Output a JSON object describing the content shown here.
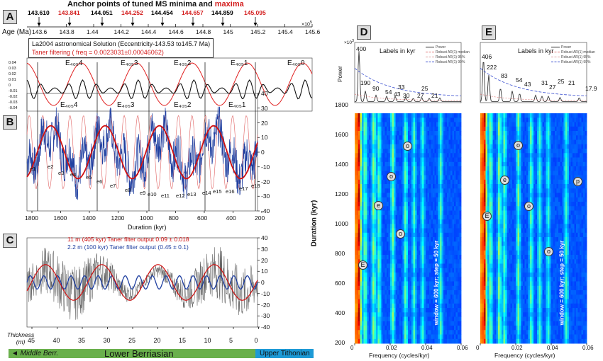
{
  "header": {
    "title_black": "Anchor points of tuned MS minima and ",
    "title_red": "maxima",
    "anchors": [
      "143.610",
      "143.841",
      "144.051",
      "144.252",
      "144.454",
      "144.657",
      "144.859",
      "145.095"
    ],
    "anchor_colors": [
      "#000000",
      "#d42020",
      "#000000",
      "#d42020",
      "#000000",
      "#d42020",
      "#000000",
      "#d42020"
    ],
    "age_label": "Age (Ma)",
    "age_ticks": [
      "143.6",
      "143.8",
      "1.44",
      "144.2",
      "144.4",
      "144.6",
      "144.8",
      "145",
      "145.2",
      "145.4",
      "145.6"
    ],
    "exp": "×10",
    "exp_power": "5"
  },
  "panelA": {
    "letter": "A",
    "legend_line1": "La2004 astronomical Solution (Eccentricity-143.53 to145.7 Ma)",
    "legend_line2": "Taner filtering ( freq = 0.0023031±0.00046062)",
    "e_labels": [
      "E₄₀₅4",
      "E₄₀₅3",
      "E₄₀₅2",
      "E₄₀₅1",
      "E₄₀₅0"
    ],
    "yticks": [
      "0.04",
      "0.03",
      "0.02",
      "0.01",
      "0",
      "-0.01",
      "-0.02",
      "-0.03",
      "-0.04"
    ]
  },
  "panelB": {
    "letter": "B",
    "e_labels": [
      "E₄₀₅4",
      "E₄₀₅3",
      "E₄₀₅2",
      "E₄₀₅1"
    ],
    "small_e": [
      "e1",
      "e2",
      "e3",
      "e4",
      "e5",
      "e6",
      "e7",
      "e8",
      "e9",
      "e10",
      "e11",
      "e12",
      "e13",
      "e14",
      "e15",
      "e16",
      "e17",
      "e18"
    ],
    "xticks": [
      "1800",
      "1600",
      "1400",
      "1200",
      "1000",
      "800",
      "600",
      "400",
      "200"
    ],
    "yticks": [
      "40",
      "30",
      "20",
      "10",
      "0",
      "-10",
      "-20",
      "-30",
      "-40"
    ],
    "xlabel": "Duration (kyr)"
  },
  "panelC": {
    "letter": "C",
    "legend_red": "11 m (405 kyr) Taner filter output 0.09 ± 0.018",
    "legend_blue": "2.2 m (100 kyr) Taner filter output (0.45 ± 0.1)",
    "yticks": [
      "40",
      "30",
      "20",
      "10",
      "0",
      "-10",
      "-20",
      "-30",
      "-40"
    ],
    "xticks": [
      "45",
      "40",
      "35",
      "30",
      "25",
      "20",
      "15",
      "10",
      "5",
      "0"
    ],
    "thickness": "Thickness",
    "thickness_unit": "(m)"
  },
  "formation": {
    "middle": "◄ Middle Berr.",
    "lower": "Lower Berriasian",
    "upper": "Upper Tithonian",
    "color_green": "#6ab04c",
    "color_blue": "#1e9ad6"
  },
  "panelD": {
    "letter": "D",
    "labels_title": "Labels in kyr",
    "peak_labels": [
      "400",
      "190",
      "90",
      "54",
      "43",
      "33",
      "30",
      "27",
      "25",
      "21"
    ],
    "legend": [
      "Power",
      "Robust AR(1) median",
      "Robust AR(1) 95%",
      "Robust AR(1) 99%"
    ],
    "power_label": "Power",
    "power_exp": "×10",
    "power_exp_n": "3",
    "ylabel": "Duration (kyr)",
    "yticks": [
      "1800",
      "1600",
      "1400",
      "1200",
      "1000",
      "800",
      "600",
      "400",
      "200"
    ],
    "xticks": [
      "0",
      "0.02",
      "0.04",
      "0.06"
    ],
    "xlabel": "Frequency (cycles/kyr)",
    "window_note": "window = 600 kyr; step = 50 kyr",
    "marks": [
      "o",
      "o",
      "e",
      "o",
      "E"
    ]
  },
  "panelE": {
    "letter": "E",
    "labels_title": "Labels in kyr",
    "peak_labels": [
      "406",
      "222",
      "83",
      "54",
      "43",
      "31",
      "27",
      "25",
      "21",
      "17.9"
    ],
    "legend": [
      "Power",
      "Robust AR(1) median",
      "Robust AR(1) 95%",
      "Robust AR(1) 99%"
    ],
    "xticks": [
      "0",
      "0.02",
      "0.04",
      "0.06"
    ],
    "xlabel": "Frequency (cycles/kyr)",
    "window_note": "window = 600 kyr; step = 50 kyr",
    "marks": [
      "o",
      "e",
      "p",
      "E",
      "o",
      "o"
    ]
  }
}
